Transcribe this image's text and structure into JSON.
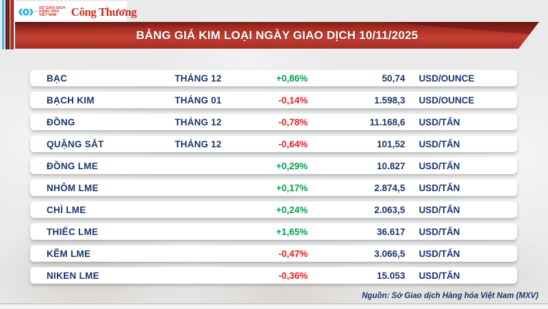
{
  "header": {
    "mxv_logo": {
      "chevron_glyphs": "«»",
      "trademark": "™",
      "org_line1": "SỞ GIAO DỊCH",
      "org_line2": "HÀNG HÓA",
      "org_line3": "VIỆT NAM"
    },
    "congthuong_logo": "Công Thương",
    "banner_title": "BẢNG GIÁ KIM LOẠI NGÀY GIAO DỊCH 10/11/2025"
  },
  "chart_data": {
    "type": "table",
    "title": "BẢNG GIÁ KIM LOẠI NGÀY GIAO DỊCH 10/11/2025",
    "columns": [
      "name",
      "month",
      "change_pct",
      "price",
      "unit"
    ],
    "rows": [
      {
        "name": "BẠC",
        "month": "THÁNG 12",
        "change": "+0,86%",
        "trend": "up",
        "value": "50,74",
        "unit": "USD/OUNCE"
      },
      {
        "name": "BẠCH KIM",
        "month": "THÁNG 01",
        "change": "-0,14%",
        "trend": "down",
        "value": "1.598,3",
        "unit": "USD/OUNCE"
      },
      {
        "name": "ĐỒNG",
        "month": "THÁNG 12",
        "change": "-0,78%",
        "trend": "down",
        "value": "11.168,6",
        "unit": "USD/TẤN"
      },
      {
        "name": "QUẶNG SẮT",
        "month": "THÁNG 12",
        "change": "-0,64%",
        "trend": "down",
        "value": "101,52",
        "unit": "USD/TẤN"
      },
      {
        "name": "ĐỒNG LME",
        "month": "",
        "change": "+0,29%",
        "trend": "up",
        "value": "10.827",
        "unit": "USD/TẤN"
      },
      {
        "name": "NHÔM LME",
        "month": "",
        "change": "+0,17%",
        "trend": "up",
        "value": "2.874,5",
        "unit": "USD/TẤN"
      },
      {
        "name": "CHÌ LME",
        "month": "",
        "change": "+0,24%",
        "trend": "up",
        "value": "2.063,5",
        "unit": "USD/TẤN"
      },
      {
        "name": "THIẾC LME",
        "month": "",
        "change": "+1,65%",
        "trend": "up",
        "value": "36.617",
        "unit": "USD/TẤN"
      },
      {
        "name": "KẼM LME",
        "month": "",
        "change": "-0,47%",
        "trend": "down",
        "value": "3.066,5",
        "unit": "USD/TẤN"
      },
      {
        "name": "NIKEN LME",
        "month": "",
        "change": "-0,36%",
        "trend": "down",
        "value": "15.053",
        "unit": "USD/TẤN"
      }
    ],
    "source": "Nguồn: Sở Giao dịch Hàng hóa Việt Nam (MXV)"
  },
  "footer": {
    "source": "Nguồn: Sở Giao dịch Hàng hóa Việt Nam (MXV)"
  },
  "colors": {
    "navy_text": "#17356b",
    "up_green": "#00a14d",
    "down_red": "#ee1d23",
    "banner_red": "#b5352a",
    "logo_red": "#c4271f",
    "stripe_cyan": "#3ab7e6",
    "background": "#e9eaea"
  }
}
